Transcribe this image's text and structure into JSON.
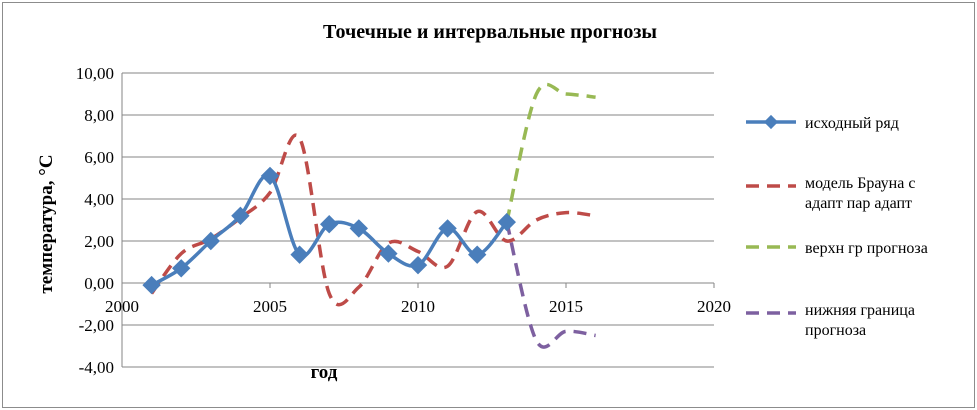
{
  "chart_data": {
    "type": "line",
    "title": "Точечные и интервальные прогнозы",
    "xlabel": "год",
    "ylabel": "температура, °С",
    "xlim": [
      2000,
      2020
    ],
    "ylim": [
      -4,
      10
    ],
    "x_ticks": [
      "2000",
      "2005",
      "2010",
      "2015",
      "2020"
    ],
    "y_ticks": [
      "-4,00",
      "-2,00",
      "0,00",
      "2,00",
      "4,00",
      "6,00",
      "8,00",
      "10,00"
    ],
    "grid": "horizontal",
    "legend_position": "right",
    "series": [
      {
        "name": "исходный ряд",
        "color": "#4a7ebb",
        "style": "solid-markers",
        "points": [
          [
            2001,
            -0.1
          ],
          [
            2002,
            0.7
          ],
          [
            2003,
            2.0
          ],
          [
            2004,
            3.2
          ],
          [
            2005,
            5.1
          ],
          [
            2006,
            1.35
          ],
          [
            2007,
            2.8
          ],
          [
            2008,
            2.6
          ],
          [
            2009,
            1.4
          ],
          [
            2010,
            0.85
          ],
          [
            2011,
            2.6
          ],
          [
            2012,
            1.35
          ],
          [
            2013,
            2.9
          ]
        ]
      },
      {
        "name": "модель Брауна с адапт пар адапт",
        "color": "#be4b48",
        "style": "dashed",
        "points": [
          [
            2001,
            -0.5
          ],
          [
            2002,
            1.4
          ],
          [
            2003,
            2.1
          ],
          [
            2004,
            3.1
          ],
          [
            2005,
            4.3
          ],
          [
            2006,
            6.9
          ],
          [
            2007,
            -0.5
          ],
          [
            2008,
            -0.2
          ],
          [
            2009,
            1.9
          ],
          [
            2010,
            1.5
          ],
          [
            2011,
            0.8
          ],
          [
            2012,
            3.4
          ],
          [
            2013,
            2.0
          ],
          [
            2014,
            3.0
          ],
          [
            2015,
            3.35
          ],
          [
            2016,
            3.2
          ]
        ]
      },
      {
        "name": "верхн гр прогноза",
        "color": "#98b954",
        "style": "dashed",
        "points": [
          [
            2013,
            2.9
          ],
          [
            2014,
            9.0
          ],
          [
            2015,
            9.0
          ],
          [
            2016,
            8.85
          ]
        ]
      },
      {
        "name": "нижняя граница прогноза",
        "color": "#7d60a0",
        "style": "dashed",
        "points": [
          [
            2013,
            2.9
          ],
          [
            2014,
            -2.75
          ],
          [
            2015,
            -2.3
          ],
          [
            2016,
            -2.5
          ]
        ]
      }
    ]
  }
}
